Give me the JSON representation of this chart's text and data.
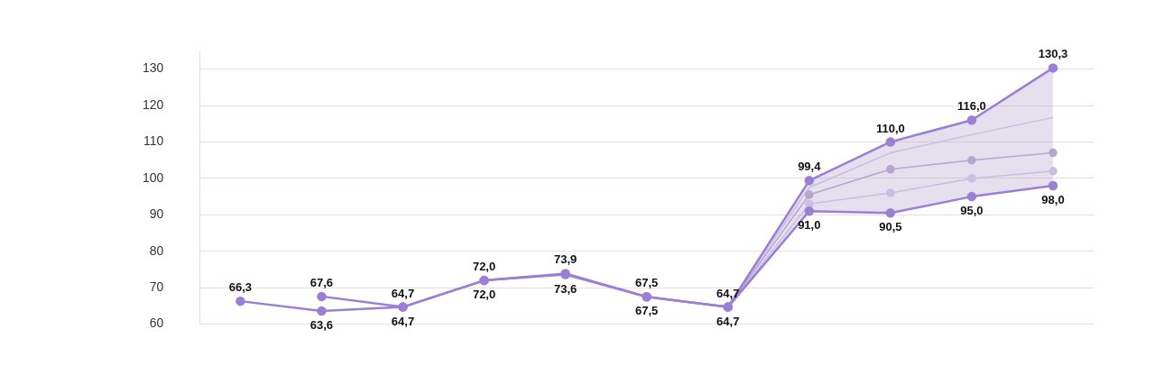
{
  "chart_data": {
    "type": "line",
    "categories": [
      null,
      null,
      null,
      null,
      null,
      null,
      null,
      null,
      null,
      null,
      null
    ],
    "ylim": [
      60,
      135
    ],
    "yticks": [
      60,
      70,
      80,
      90,
      100,
      110,
      120,
      130
    ],
    "grid": "y",
    "tick_labels": "y",
    "series": [
      {
        "type": "line",
        "color": "#9b7fd4",
        "marker": "circle",
        "values": [
          66.3,
          63.6,
          64.7,
          72,
          73.6,
          67.5,
          64.7,
          99.4,
          110,
          116,
          130.3
        ],
        "value_labels": [
          "66,3",
          "63,6",
          "64,7",
          "72,0",
          "73,6",
          "67,5",
          "64,7",
          "99,4",
          "110,0",
          "116,0",
          "130,3"
        ]
      },
      {
        "type": "line",
        "color": "#9b7fd4",
        "marker": "circle",
        "values": [
          null,
          67.6,
          64.7,
          72,
          73.9,
          67.5,
          64.7,
          91,
          90.5,
          95,
          98
        ],
        "value_labels": [
          null,
          "67,6",
          "64,7",
          "72,0",
          "73,9",
          "67,5",
          "64,7",
          "91,0",
          "90,5",
          "95,0",
          "98,0"
        ]
      },
      {
        "type": "line",
        "color": "#b4a6cf",
        "marker": "circle",
        "values": [
          null,
          null,
          null,
          null,
          null,
          null,
          64.7,
          95.5,
          102.5,
          105,
          107
        ],
        "lower": [
          null,
          null,
          null,
          null,
          null,
          null,
          64.7,
          91,
          90.5,
          95,
          98
        ],
        "upper": [
          null,
          null,
          null,
          null,
          null,
          null,
          64.7,
          99.4,
          110,
          116,
          130.3
        ]
      },
      {
        "type": "line",
        "color": "#c9bde3",
        "marker": "none",
        "values": [
          null,
          null,
          null,
          null,
          null,
          null,
          64.7,
          97.5,
          107,
          112,
          116.7
        ]
      },
      {
        "type": "line",
        "color": "#c9bde3",
        "marker": "circle",
        "values": [
          null,
          null,
          null,
          null,
          null,
          null,
          64.7,
          93,
          96,
          100,
          102
        ]
      }
    ]
  }
}
